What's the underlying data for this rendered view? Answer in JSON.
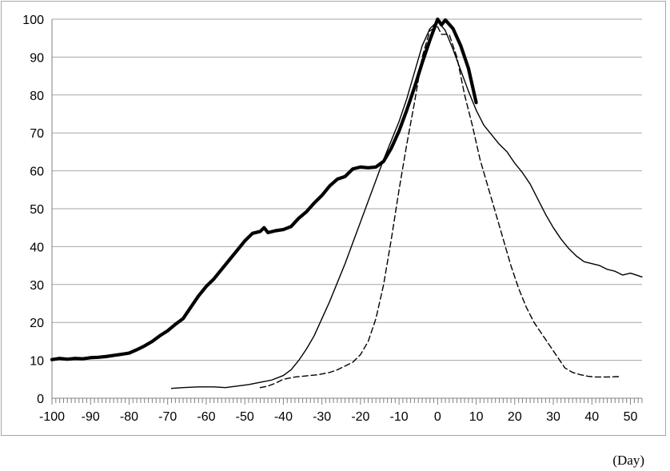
{
  "chart_data": {
    "type": "line",
    "title": "",
    "xlabel": "(Day)",
    "ylabel": "",
    "xlim": [
      -100,
      53
    ],
    "ylim": [
      0,
      100
    ],
    "x_ticks": [
      -100,
      -90,
      -80,
      -70,
      -60,
      -50,
      -40,
      -30,
      -20,
      -10,
      0,
      10,
      20,
      30,
      40,
      50
    ],
    "y_ticks": [
      0,
      10,
      20,
      30,
      40,
      50,
      60,
      70,
      80,
      90,
      100
    ],
    "grid": "horizontal",
    "legend": "none",
    "series": [
      {
        "style": "thick-solid",
        "color": "#000000",
        "points": [
          [
            -100,
            10.2
          ],
          [
            -98,
            10.5
          ],
          [
            -96,
            10.3
          ],
          [
            -94,
            10.5
          ],
          [
            -92,
            10.4
          ],
          [
            -90,
            10.7
          ],
          [
            -88,
            10.8
          ],
          [
            -86,
            11.0
          ],
          [
            -84,
            11.3
          ],
          [
            -82,
            11.6
          ],
          [
            -80,
            11.9
          ],
          [
            -78,
            12.8
          ],
          [
            -76,
            13.8
          ],
          [
            -74,
            15.0
          ],
          [
            -72,
            16.5
          ],
          [
            -70,
            17.8
          ],
          [
            -68,
            19.5
          ],
          [
            -66,
            21.0
          ],
          [
            -64,
            24.0
          ],
          [
            -62,
            27.0
          ],
          [
            -60,
            29.5
          ],
          [
            -58,
            31.5
          ],
          [
            -56,
            34.0
          ],
          [
            -54,
            36.5
          ],
          [
            -52,
            39.0
          ],
          [
            -50,
            41.5
          ],
          [
            -48,
            43.5
          ],
          [
            -46,
            44.0
          ],
          [
            -45,
            45.0
          ],
          [
            -44,
            43.7
          ],
          [
            -42,
            44.2
          ],
          [
            -40,
            44.5
          ],
          [
            -38,
            45.3
          ],
          [
            -36,
            47.5
          ],
          [
            -34,
            49.2
          ],
          [
            -32,
            51.5
          ],
          [
            -30,
            53.5
          ],
          [
            -28,
            56.0
          ],
          [
            -26,
            57.8
          ],
          [
            -24,
            58.5
          ],
          [
            -22,
            60.5
          ],
          [
            -20,
            61.0
          ],
          [
            -18,
            60.8
          ],
          [
            -16,
            61.0
          ],
          [
            -14,
            62.5
          ],
          [
            -12,
            66.0
          ],
          [
            -10,
            70.5
          ],
          [
            -8,
            76.0
          ],
          [
            -6,
            82.0
          ],
          [
            -4,
            88.5
          ],
          [
            -2,
            94.5
          ],
          [
            0,
            100.0
          ],
          [
            1,
            98.5
          ],
          [
            2,
            99.8
          ],
          [
            4,
            97.5
          ],
          [
            6,
            93.0
          ],
          [
            8,
            87.0
          ],
          [
            10,
            78.0
          ]
        ]
      },
      {
        "style": "thin-solid",
        "color": "#000000",
        "points": [
          [
            -69,
            2.6
          ],
          [
            -66,
            2.8
          ],
          [
            -62,
            3.0
          ],
          [
            -58,
            3.0
          ],
          [
            -55,
            2.8
          ],
          [
            -52,
            3.2
          ],
          [
            -49,
            3.6
          ],
          [
            -46,
            4.2
          ],
          [
            -43,
            4.8
          ],
          [
            -40,
            6.0
          ],
          [
            -38,
            7.5
          ],
          [
            -36,
            10.0
          ],
          [
            -34,
            13.0
          ],
          [
            -32,
            16.5
          ],
          [
            -30,
            21.0
          ],
          [
            -28,
            25.5
          ],
          [
            -26,
            30.5
          ],
          [
            -24,
            35.5
          ],
          [
            -22,
            41.0
          ],
          [
            -20,
            46.5
          ],
          [
            -18,
            52.0
          ],
          [
            -16,
            57.5
          ],
          [
            -14,
            63.0
          ],
          [
            -12,
            68.0
          ],
          [
            -10,
            73.0
          ],
          [
            -8,
            79.0
          ],
          [
            -6,
            86.0
          ],
          [
            -4,
            93.0
          ],
          [
            -2,
            97.5
          ],
          [
            0,
            99.5
          ],
          [
            2,
            97.0
          ],
          [
            4,
            92.0
          ],
          [
            6,
            86.5
          ],
          [
            8,
            81.0
          ],
          [
            10,
            76.0
          ],
          [
            12,
            72.0
          ],
          [
            14,
            69.5
          ],
          [
            16,
            67.0
          ],
          [
            18,
            65.0
          ],
          [
            20,
            62.0
          ],
          [
            22,
            59.5
          ],
          [
            24,
            56.5
          ],
          [
            26,
            52.5
          ],
          [
            28,
            48.5
          ],
          [
            30,
            45.0
          ],
          [
            32,
            42.0
          ],
          [
            34,
            39.5
          ],
          [
            36,
            37.5
          ],
          [
            38,
            36.0
          ],
          [
            40,
            35.5
          ],
          [
            42,
            35.0
          ],
          [
            44,
            34.0
          ],
          [
            46,
            33.5
          ],
          [
            48,
            32.5
          ],
          [
            50,
            33.0
          ],
          [
            53,
            32.0
          ]
        ]
      },
      {
        "style": "dashed",
        "color": "#000000",
        "points": [
          [
            -46,
            2.8
          ],
          [
            -44,
            3.2
          ],
          [
            -42,
            4.0
          ],
          [
            -40,
            5.0
          ],
          [
            -37,
            5.6
          ],
          [
            -34,
            5.9
          ],
          [
            -31,
            6.2
          ],
          [
            -28,
            6.8
          ],
          [
            -26,
            7.5
          ],
          [
            -24,
            8.5
          ],
          [
            -22,
            9.5
          ],
          [
            -20,
            11.5
          ],
          [
            -18,
            15.0
          ],
          [
            -16,
            21.0
          ],
          [
            -14,
            30.0
          ],
          [
            -12,
            42.0
          ],
          [
            -10,
            55.0
          ],
          [
            -8,
            67.0
          ],
          [
            -6,
            78.0
          ],
          [
            -4,
            90.0
          ],
          [
            -2,
            97.0
          ],
          [
            0,
            98.0
          ],
          [
            1,
            96.0
          ],
          [
            3,
            96.0
          ],
          [
            5,
            90.0
          ],
          [
            7,
            80.0
          ],
          [
            9,
            72.0
          ],
          [
            11,
            63.0
          ],
          [
            13,
            56.0
          ],
          [
            15,
            49.0
          ],
          [
            17,
            42.0
          ],
          [
            19,
            35.0
          ],
          [
            21,
            29.0
          ],
          [
            23,
            24.0
          ],
          [
            25,
            20.0
          ],
          [
            27,
            17.0
          ],
          [
            29,
            14.0
          ],
          [
            31,
            11.0
          ],
          [
            33,
            8.0
          ],
          [
            35,
            6.8
          ],
          [
            37,
            6.2
          ],
          [
            39,
            5.8
          ],
          [
            41,
            5.6
          ],
          [
            44,
            5.6
          ],
          [
            47,
            5.7
          ]
        ]
      }
    ]
  }
}
